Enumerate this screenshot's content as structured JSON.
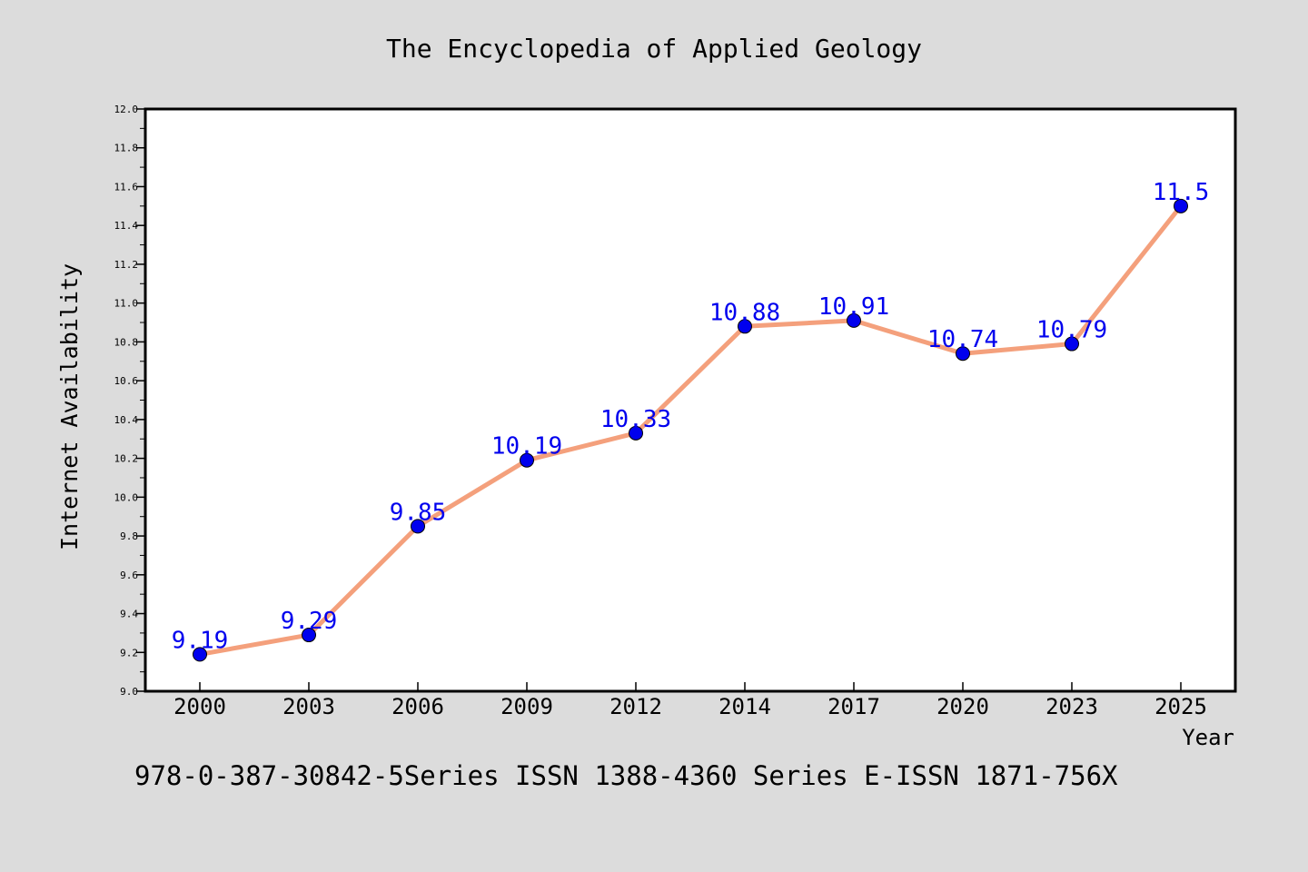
{
  "chart_data": {
    "type": "line",
    "title": "The Encyclopedia of Applied Geology",
    "xlabel": "Year",
    "ylabel": "Internet Availability",
    "footer": "978-0-387-30842-5Series ISSN 1388-4360 Series E-ISSN 1871-756X",
    "categories": [
      "2000",
      "2003",
      "2006",
      "2009",
      "2012",
      "2014",
      "2017",
      "2020",
      "2023",
      "2025"
    ],
    "series": [
      {
        "values": [
          9.19,
          9.29,
          9.85,
          10.19,
          10.33,
          10.88,
          10.91,
          10.74,
          10.79,
          11.5
        ],
        "data_labels": [
          "9.19",
          "9.29",
          "9.85",
          "10.19",
          "10.33",
          "10.88",
          "10.91",
          "10.74",
          "10.79",
          "11.5"
        ]
      }
    ],
    "ylim": [
      9.0,
      12.0
    ],
    "yticks": [
      "9.0",
      "9.2",
      "9.4",
      "9.6",
      "9.8",
      "10.0",
      "10.2",
      "10.4",
      "10.6",
      "10.8",
      "11.0",
      "11.2",
      "11.4",
      "11.6",
      "11.8",
      "12.0"
    ],
    "grid": false,
    "colors": {
      "line": "#f4a07c",
      "marker": "#0000ee",
      "label": "#0000ee",
      "background": "#dcdcdc",
      "plot_background": "#ffffff"
    }
  }
}
